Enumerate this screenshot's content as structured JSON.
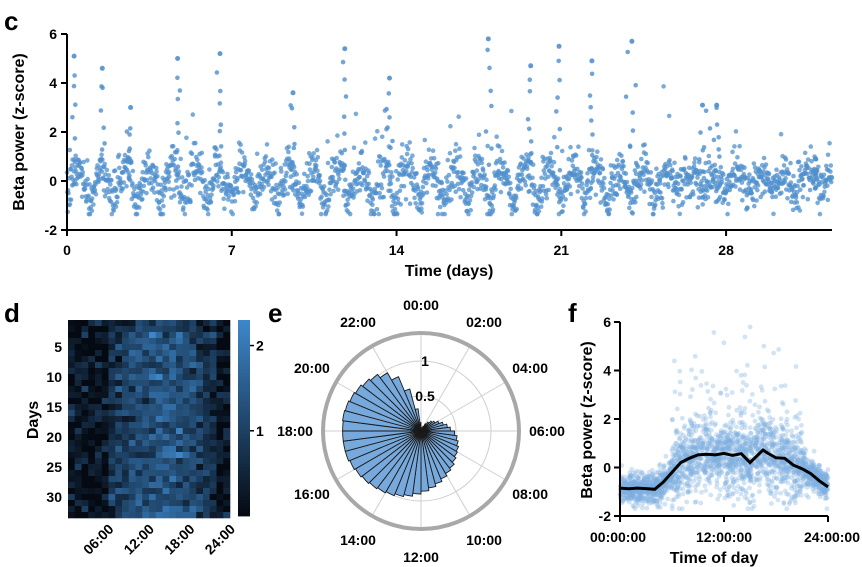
{
  "panels": {
    "c": {
      "letter": "c"
    },
    "d": {
      "letter": "d"
    },
    "e": {
      "letter": "e"
    },
    "f": {
      "letter": "f"
    }
  },
  "chart_data": [
    {
      "panel": "c",
      "type": "scatter",
      "xlabel": "Time (days)",
      "ylabel": "Beta power (z-score)",
      "xlim": [
        0,
        32.5
      ],
      "ylim": [
        -2,
        6
      ],
      "xticks": [
        "0",
        "7",
        "14",
        "21",
        "28"
      ],
      "yticks": [
        "-2",
        "0",
        "2",
        "4",
        "6"
      ],
      "point_color": "#4f8fcc",
      "description_of_series": "continuous recording, one point per ~10 min; baseline oscillates daily between about -1.2 and 1.5 with peaks up to about 5.8",
      "peaks": [
        {
          "x": 0.3,
          "y": 5.1
        },
        {
          "x": 1.5,
          "y": 4.6
        },
        {
          "x": 2.7,
          "y": 3.0
        },
        {
          "x": 4.7,
          "y": 5.0
        },
        {
          "x": 6.5,
          "y": 5.2
        },
        {
          "x": 9.6,
          "y": 3.6
        },
        {
          "x": 11.8,
          "y": 5.4
        },
        {
          "x": 13.7,
          "y": 4.2
        },
        {
          "x": 17.9,
          "y": 5.8
        },
        {
          "x": 19.7,
          "y": 4.7
        },
        {
          "x": 20.9,
          "y": 5.5
        },
        {
          "x": 22.3,
          "y": 4.9
        },
        {
          "x": 24.0,
          "y": 5.7
        },
        {
          "x": 27.0,
          "y": 3.1
        },
        {
          "x": 27.6,
          "y": 3.1
        },
        {
          "x": 31.8,
          "y": 0.9
        }
      ]
    },
    {
      "panel": "d",
      "type": "heatmap",
      "ylabel": "Days",
      "yticks": [
        "5",
        "10",
        "15",
        "20",
        "25",
        "30"
      ],
      "xticks": [
        "06:00",
        "12:00",
        "18:00",
        "24:00"
      ],
      "colorbar_ticks": [
        "1",
        "2"
      ],
      "colorbar_range": [
        0,
        2.3
      ],
      "rows": 33,
      "cols": 24,
      "color_low": "#050a12",
      "color_high": "#3d86c9",
      "pattern": "low values 00:00-06:00 and 22:00-24:00, higher values 08:00-20:00"
    },
    {
      "panel": "e",
      "type": "polar-bar",
      "angle_labels": [
        "00:00",
        "02:00",
        "04:00",
        "06:00",
        "08:00",
        "10:00",
        "12:00",
        "14:00",
        "16:00",
        "18:00",
        "20:00",
        "22:00"
      ],
      "radial_ticks": [
        "0.5",
        "1"
      ],
      "rmax": 1.4,
      "bin_hours": 0.5,
      "values": [
        0.05,
        0.03,
        0.03,
        0.07,
        0.12,
        0.16,
        0.2,
        0.23,
        0.28,
        0.33,
        0.38,
        0.42,
        0.48,
        0.52,
        0.55,
        0.58,
        0.6,
        0.63,
        0.67,
        0.7,
        0.74,
        0.78,
        0.82,
        0.86,
        0.9,
        0.94,
        0.97,
        1.0,
        1.02,
        1.04,
        1.06,
        1.08,
        1.1,
        1.12,
        1.12,
        1.12,
        1.12,
        1.13,
        1.12,
        1.1,
        1.08,
        1.05,
        1.02,
        0.96,
        0.84,
        0.62,
        0.32,
        0.12
      ],
      "bar_color": "#78a9dc",
      "ring_color": "#a8a8a8"
    },
    {
      "panel": "f",
      "type": "scatter+line",
      "xlabel": "Time of day",
      "ylabel": "Beta power (z-score)",
      "xticks": [
        "00:00:00",
        "12:00:00",
        "24:00:00"
      ],
      "yticks": [
        "-2",
        "0",
        "2",
        "4",
        "6"
      ],
      "xlim": [
        0,
        24
      ],
      "ylim": [
        -2,
        6
      ],
      "point_color": "#7fb0e0",
      "line_color": "#000000",
      "mean_line": {
        "x": [
          0,
          1,
          2,
          3,
          4,
          5,
          6,
          7,
          8,
          9,
          10,
          11,
          12,
          13,
          14,
          15,
          16,
          16.5,
          17,
          18,
          19,
          20,
          21,
          22,
          23,
          24
        ],
        "y": [
          -0.85,
          -0.88,
          -0.85,
          -0.87,
          -0.9,
          -0.6,
          -0.2,
          0.2,
          0.38,
          0.52,
          0.55,
          0.52,
          0.58,
          0.5,
          0.57,
          0.2,
          0.55,
          0.72,
          0.6,
          0.4,
          0.38,
          0.1,
          -0.05,
          -0.25,
          -0.55,
          -0.8
        ]
      }
    }
  ]
}
